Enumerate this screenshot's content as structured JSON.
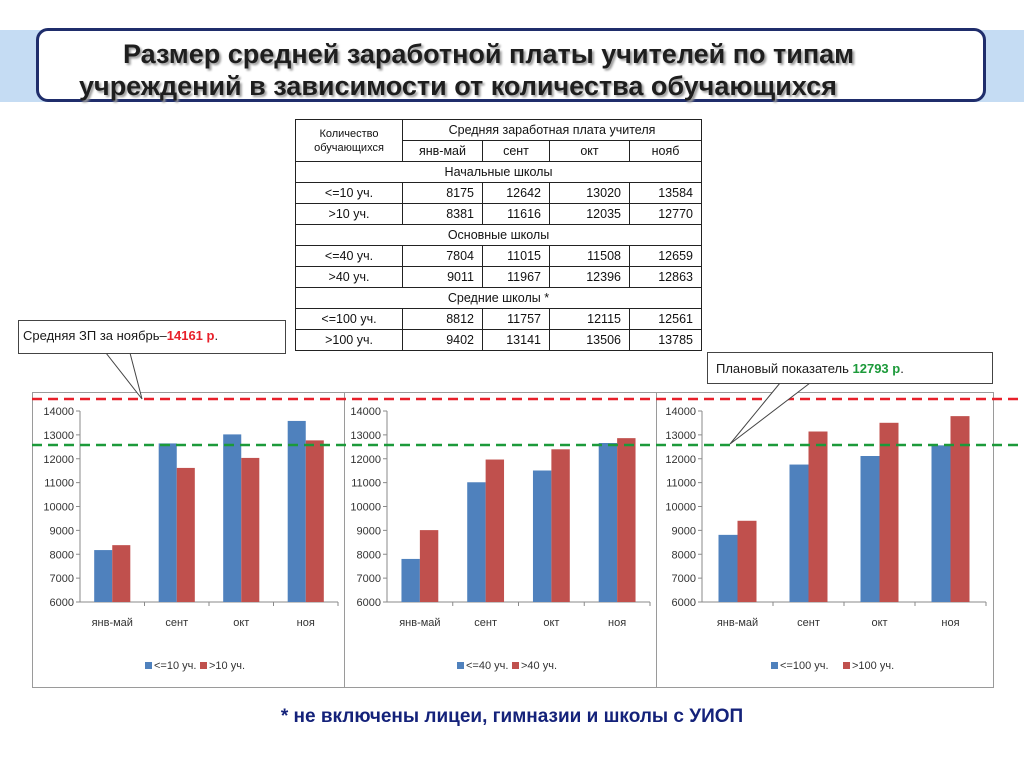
{
  "title": {
    "line1": "Размер средней заработной платы учителей по типам",
    "line2": "учреждений в зависимости от количества обучающихся"
  },
  "table": {
    "header_count": "Количество обучающихся",
    "header_salary": "Средняя заработная плата учителя",
    "months": [
      "янв-май",
      "сент",
      "окт",
      "нояб"
    ],
    "groups": [
      {
        "name": "Начальные школы",
        "rows": [
          {
            "label": "<=10 уч.",
            "values": [
              "8175",
              "12642",
              "13020",
              "13584"
            ]
          },
          {
            "label": ">10 уч.",
            "values": [
              "8381",
              "11616",
              "12035",
              "12770"
            ]
          }
        ]
      },
      {
        "name": "Основные школы",
        "rows": [
          {
            "label": "<=40 уч.",
            "values": [
              "7804",
              "11015",
              "11508",
              "12659"
            ]
          },
          {
            "label": ">40 уч.",
            "values": [
              "9011",
              "11967",
              "12396",
              "12863"
            ]
          }
        ]
      },
      {
        "name": "Средние школы *",
        "rows": [
          {
            "label": "<=100 уч.",
            "values": [
              "8812",
              "11757",
              "12115",
              "12561"
            ]
          },
          {
            "label": ">100 уч.",
            "values": [
              "9402",
              "13141",
              "13506",
              "13785"
            ]
          }
        ]
      }
    ]
  },
  "callouts": {
    "avg": {
      "prefix": "Средняя ЗП за ноябрь–",
      "value": "14161 р",
      "suffix": "."
    },
    "plan": {
      "prefix": "Плановый показатель ",
      "value": "12793 р",
      "suffix": "."
    }
  },
  "footnote": "* не включены лицеи, гимназии и школы с УИОП",
  "colors": {
    "series1": "#4f81bd",
    "series2": "#c0504d",
    "avg_line": "#e8202a",
    "plan_line": "#1c9a3a",
    "title_border": "#1f2d6b"
  },
  "chart_data": [
    {
      "type": "bar",
      "categories": [
        "янв-май",
        "сент",
        "окт",
        "ноя"
      ],
      "ylim": [
        6000,
        14000
      ],
      "yticks": [
        "6000",
        "7000",
        "8000",
        "9000",
        "10000",
        "11000",
        "12000",
        "13000",
        "14000"
      ],
      "grid": false,
      "legend": "bottom",
      "series": [
        {
          "name": "<=10 уч.",
          "values": [
            8175,
            12642,
            13020,
            13584
          ]
        },
        {
          "name": ">10 уч.",
          "values": [
            8381,
            11616,
            12035,
            12770
          ]
        }
      ]
    },
    {
      "type": "bar",
      "categories": [
        "янв-май",
        "сент",
        "окт",
        "ноя"
      ],
      "ylim": [
        6000,
        14000
      ],
      "yticks": [
        "6000",
        "7000",
        "8000",
        "9000",
        "10000",
        "11000",
        "12000",
        "13000",
        "14000"
      ],
      "grid": false,
      "legend": "bottom",
      "series": [
        {
          "name": "<=40 уч.",
          "values": [
            7804,
            11015,
            11508,
            12659
          ]
        },
        {
          "name": ">40 уч.",
          "values": [
            9011,
            11967,
            12396,
            12863
          ]
        }
      ]
    },
    {
      "type": "bar",
      "categories": [
        "янв-май",
        "сент",
        "окт",
        "ноя"
      ],
      "ylim": [
        6000,
        14000
      ],
      "yticks": [
        "6000",
        "7000",
        "8000",
        "9000",
        "10000",
        "11000",
        "12000",
        "13000",
        "14000"
      ],
      "grid": false,
      "legend": "bottom",
      "series": [
        {
          "name": "<=100 уч.",
          "values": [
            8812,
            11757,
            12115,
            12561
          ]
        },
        {
          "name": ">100 уч.",
          "values": [
            9402,
            13141,
            13506,
            13785
          ]
        }
      ]
    }
  ]
}
